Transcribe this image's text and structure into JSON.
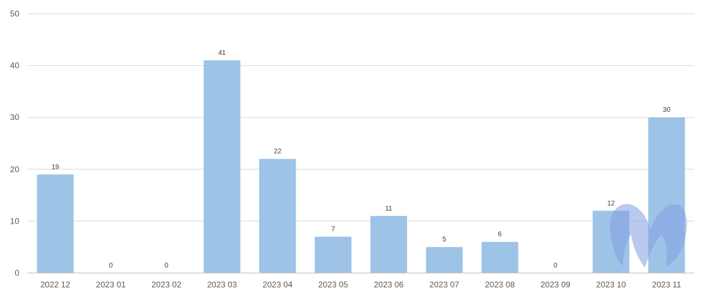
{
  "chart_data": {
    "type": "bar",
    "title": "",
    "xlabel": "",
    "ylabel": "",
    "categories": [
      "2022 12",
      "2023 01",
      "2023 02",
      "2023 03",
      "2023 04",
      "2023 05",
      "2023 06",
      "2023 07",
      "2023 08",
      "2023 09",
      "2023 10",
      "2023 11"
    ],
    "values": [
      19,
      0,
      0,
      41,
      22,
      7,
      11,
      5,
      6,
      0,
      12,
      30
    ],
    "ylim": [
      0,
      50
    ],
    "yticks": [
      0,
      10,
      20,
      30,
      40,
      50
    ],
    "grid": true,
    "legend": "none",
    "data_labels": true,
    "colors": {
      "bar": "#9dc3e6",
      "grid": "#d9d9d9",
      "text": "#595959",
      "watermark": "#7f9fe0"
    }
  }
}
